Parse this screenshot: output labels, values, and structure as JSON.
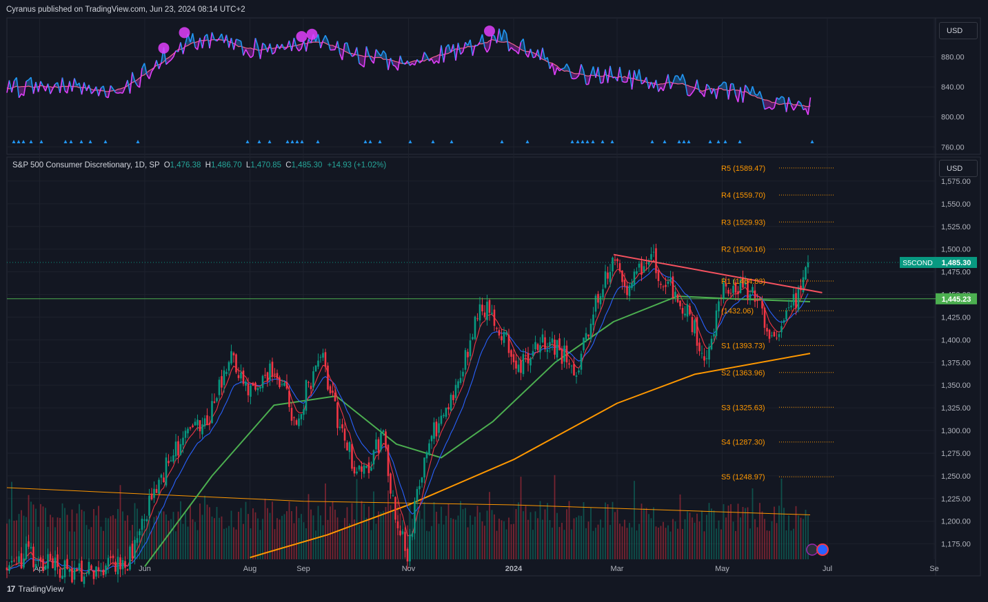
{
  "header": {
    "published_text": "Cyranus published on TradingView.com, Jun 23, 2024 08:14 UTC+2"
  },
  "footer": {
    "brand": "TradingView",
    "logo_glyph": "17"
  },
  "currency_buttons": {
    "top": "USD",
    "bottom": "USD"
  },
  "legend": {
    "symbol": "S&P 500 Consumer Discretionary, 1D, SP",
    "open_label": "O",
    "open": "1,476.38",
    "high_label": "H",
    "high": "1,486.70",
    "low_label": "L",
    "low": "1,470.85",
    "close_label": "C",
    "close": "1,485.30",
    "change": "+14.93 (+1.02%)"
  },
  "colors": {
    "background": "#131722",
    "grid": "#1e222d",
    "up": "#089981",
    "down": "#f23645",
    "sma_fast": "#f23645",
    "sma_mid": "#2962ff",
    "sma_50": "#4caf50",
    "sma_200": "#ff9800",
    "trendline": "#f7525f",
    "support_line": "#4caf50",
    "pivot": "#ff9800",
    "osc_line": "#2196f3",
    "osc_down": "#e040fb",
    "osc_signal": "#f06292",
    "marker": "#e040fb"
  },
  "chart_data": [
    {
      "type": "line",
      "panel": "oscillator",
      "ylim": [
        752,
        930
      ],
      "y_ticks": [
        "880.00",
        "840.00",
        "800.00",
        "760.00"
      ],
      "markers_at": [
        "Jun 12",
        "Jun 24",
        "Aug 31",
        "Sep 6",
        "Dec 18"
      ],
      "arrow_markers": "many small blue arrows along bottom"
    },
    {
      "type": "candlestick",
      "panel": "price",
      "ylim": [
        1158,
        1600
      ],
      "y_ticks": [
        "1,575.00",
        "1,550.00",
        "1,525.00",
        "1,500.00",
        "1,475.00",
        "1,450.00",
        "1,425.00",
        "1,400.00",
        "1,375.00",
        "1,350.00",
        "1,325.00",
        "1,300.00",
        "1,275.00",
        "1,250.00",
        "1,225.00",
        "1,200.00",
        "1,175.00"
      ],
      "x_ticks": [
        "Apr",
        "Jun",
        "Aug",
        "Sep",
        "Nov",
        "2024",
        "Mar",
        "May",
        "Jul",
        "Se"
      ],
      "x_tick_dates": [
        "2023-04-01",
        "2023-06-01",
        "2023-08-01",
        "2023-09-01",
        "2023-11-01",
        "2024-01-01",
        "2024-03-01",
        "2024-05-01",
        "2024-07-01",
        "2024-09-01"
      ],
      "last_price_label": {
        "symbol": "S5COND",
        "value": "1,485.30",
        "price": 1485.3
      },
      "horizontal_line": {
        "value": "1,445.23",
        "price": 1445.23
      },
      "pivots": [
        {
          "label": "R5 (1589.47)",
          "price": 1589.47
        },
        {
          "label": "R4 (1559.70)",
          "price": 1559.7
        },
        {
          "label": "R3 (1529.93)",
          "price": 1529.93
        },
        {
          "label": "R2 (1500.16)",
          "price": 1500.16
        },
        {
          "label": "R1 (1464.83)",
          "price": 1464.83
        },
        {
          "label": "(1432.06)",
          "price": 1432.06
        },
        {
          "label": "S1 (1393.73)",
          "price": 1393.73
        },
        {
          "label": "S2 (1363.96)",
          "price": 1363.96
        },
        {
          "label": "S3 (1325.63)",
          "price": 1325.63
        },
        {
          "label": "S4 (1287.30)",
          "price": 1287.3
        },
        {
          "label": "S5 (1248.97)",
          "price": 1248.97
        }
      ],
      "trendline": {
        "from": [
          "2024-02-28",
          1494
        ],
        "to": [
          "2024-06-28",
          1452
        ]
      },
      "price_path": [
        [
          "2023-03-13",
          1145
        ],
        [
          "2023-03-24",
          1165
        ],
        [
          "2023-04-12",
          1145
        ],
        [
          "2023-05-04",
          1142
        ],
        [
          "2023-05-24",
          1160
        ],
        [
          "2023-06-02",
          1210
        ],
        [
          "2023-06-14",
          1265
        ],
        [
          "2023-06-28",
          1300
        ],
        [
          "2023-07-10",
          1320
        ],
        [
          "2023-07-21",
          1385
        ],
        [
          "2023-07-28",
          1350
        ],
        [
          "2023-08-04",
          1338
        ],
        [
          "2023-08-15",
          1372
        ],
        [
          "2023-08-24",
          1325
        ],
        [
          "2023-08-29",
          1300
        ],
        [
          "2023-09-03",
          1348
        ],
        [
          "2023-09-12",
          1382
        ],
        [
          "2023-09-20",
          1320
        ],
        [
          "2023-10-02",
          1255
        ],
        [
          "2023-10-10",
          1262
        ],
        [
          "2023-10-17",
          1300
        ],
        [
          "2023-10-24",
          1210
        ],
        [
          "2023-10-31",
          1162
        ],
        [
          "2023-11-06",
          1230
        ],
        [
          "2023-11-16",
          1300
        ],
        [
          "2023-11-29",
          1350
        ],
        [
          "2023-12-14",
          1440
        ],
        [
          "2023-12-22",
          1418
        ],
        [
          "2024-01-05",
          1372
        ],
        [
          "2024-01-16",
          1395
        ],
        [
          "2024-01-29",
          1385
        ],
        [
          "2024-02-07",
          1368
        ],
        [
          "2024-02-16",
          1435
        ],
        [
          "2024-02-28",
          1493
        ],
        [
          "2024-03-08",
          1455
        ],
        [
          "2024-03-20",
          1490
        ],
        [
          "2024-04-02",
          1455
        ],
        [
          "2024-04-12",
          1425
        ],
        [
          "2024-04-22",
          1382
        ],
        [
          "2024-04-30",
          1450
        ],
        [
          "2024-05-10",
          1462
        ],
        [
          "2024-05-20",
          1450
        ],
        [
          "2024-05-31",
          1400
        ],
        [
          "2024-06-10",
          1435
        ],
        [
          "2024-06-21",
          1485.3
        ]
      ],
      "sma_200_path": [
        [
          "2023-08-01",
          1160
        ],
        [
          "2023-09-15",
          1185
        ],
        [
          "2023-11-01",
          1218
        ],
        [
          "2024-01-01",
          1268
        ],
        [
          "2024-03-01",
          1330
        ],
        [
          "2024-04-15",
          1362
        ],
        [
          "2024-06-21",
          1385
        ]
      ],
      "sma_50_path": [
        [
          "2023-06-01",
          1150
        ],
        [
          "2023-07-10",
          1250
        ],
        [
          "2023-08-15",
          1328
        ],
        [
          "2023-09-20",
          1338
        ],
        [
          "2023-10-25",
          1285
        ],
        [
          "2023-11-20",
          1270
        ],
        [
          "2023-12-20",
          1310
        ],
        [
          "2024-01-25",
          1375
        ],
        [
          "2024-02-28",
          1420
        ],
        [
          "2024-04-05",
          1448
        ],
        [
          "2024-05-10",
          1445
        ],
        [
          "2024-06-21",
          1442
        ]
      ],
      "volume_avg_path": [
        [
          "2023-03-13",
          1237
        ],
        [
          "2023-06-01",
          1230
        ],
        [
          "2023-09-01",
          1222
        ],
        [
          "2024-01-01",
          1218
        ],
        [
          "2024-06-21",
          1207
        ]
      ]
    }
  ]
}
